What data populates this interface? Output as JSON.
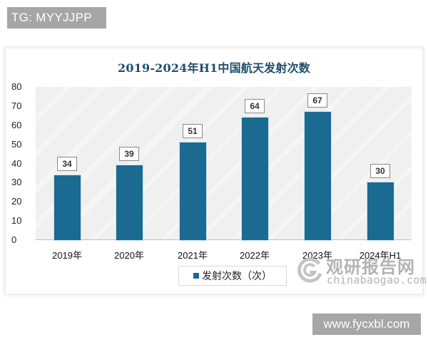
{
  "overlays": {
    "top_tag": "TG: MYYJJPP",
    "bottom_tag": "www.fycxbl.com"
  },
  "watermark": {
    "name_cn": "观研报告网",
    "domain": "chinabaogao.com",
    "icon": "chinabaogao-logo-icon"
  },
  "chart_data": {
    "type": "bar",
    "title": "2019-2024年H1中国航天发射次数",
    "categories": [
      "2019年",
      "2020年",
      "2021年",
      "2022年",
      "2023年",
      "2024年H1"
    ],
    "series": [
      {
        "name": "发射次数（次）",
        "values": [
          34,
          39,
          51,
          64,
          67,
          30
        ],
        "color": "#1a6a91"
      }
    ],
    "values": [
      34,
      39,
      51,
      64,
      67,
      30
    ],
    "xlabel": "",
    "ylabel": "",
    "ylim": [
      0,
      80
    ],
    "yticks": [
      0,
      10,
      20,
      30,
      40,
      50,
      60,
      70,
      80
    ],
    "grid": false,
    "data_labels": true,
    "legend": {
      "position": "bottom",
      "entries": [
        "发射次数（次）"
      ]
    },
    "background": "diagonal hatch pattern"
  }
}
